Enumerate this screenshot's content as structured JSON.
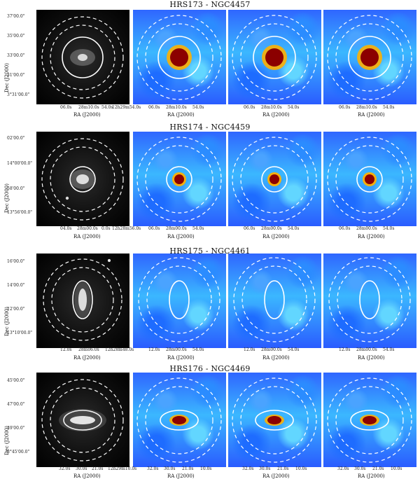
{
  "rows": [
    {
      "title": "HRS173 - NGC4457",
      "optical": {
        "yticks": [
          "37'00.0\"",
          "35'00.0\"",
          "33'00.0\"",
          "31'00.0\"",
          "3°31'00.0\""
        ],
        "xticks": [
          "06.0s",
          "28m10.0s",
          "54.0s",
          "12h29m54.0s"
        ],
        "ylabel": "Dec (J2000)",
        "xlabel": "RA (J2000)"
      },
      "ir1": {
        "xticks": [
          "06.0s",
          "28m10.0s",
          "54.0s"
        ],
        "xlabel": "RA (J2000)"
      },
      "ir2": {
        "xticks": [
          "06.0s",
          "28m10.0s",
          "54.0s"
        ],
        "xlabel": "RA (J2000)"
      },
      "ir3": {
        "xticks": [
          "06.0s",
          "28m10.0s",
          "54.0s"
        ],
        "xlabel": "RA (J2000)"
      }
    },
    {
      "title": "HRS174 - NGC4459",
      "optical": {
        "yticks": [
          "02'00.0\"",
          "14°00'00.0\"",
          "58'00.0\"",
          "13°56'00.0\""
        ],
        "xticks": [
          "04.0s",
          "28m00.0s",
          "0.0s",
          "12h28m56.0s"
        ],
        "ylabel": "Dec (J2000)",
        "xlabel": "RA (J2000)"
      },
      "ir1": {
        "xticks": [
          "06.0s",
          "28m00.0s",
          "54.0s"
        ],
        "xlabel": "RA (J2000)"
      },
      "ir2": {
        "xticks": [
          "06.0s",
          "28m00.0s",
          "54.0s"
        ],
        "xlabel": "RA (J2000)"
      },
      "ir3": {
        "xticks": [
          "06.0s",
          "28m00.0s",
          "54.0s"
        ],
        "xlabel": "RA (J2000)"
      }
    },
    {
      "title": "HRS175 - NGC4461",
      "optical": {
        "yticks": [
          "16'00.0\"",
          "14'00.0\"",
          "12'00.0\"",
          "13°10'00.0\""
        ],
        "xticks": [
          "12.0s",
          "28m06.0s",
          "12h28m48.0s"
        ],
        "ylabel": "Dec (J2000)",
        "xlabel": "RA (J2000)"
      },
      "ir1": {
        "xticks": [
          "12.0s",
          "28m00.0s",
          "54.0s"
        ],
        "xlabel": "RA (J2000)"
      },
      "ir2": {
        "xticks": [
          "12.0s",
          "28m00.0s",
          "54.0s"
        ],
        "xlabel": "RA (J2000)"
      },
      "ir3": {
        "xticks": [
          "12.0s",
          "28m00.0s",
          "54.0s"
        ],
        "xlabel": "RA (J2000)"
      }
    },
    {
      "title": "HRS176 - NGC4469",
      "optical": {
        "yticks": [
          "45'00.0\"",
          "47'00.0\"",
          "49'00.0\"",
          "8°45'00.0\""
        ],
        "xticks": [
          "32.0s",
          "30.0s",
          "21.0s",
          "12h29m10.0s"
        ],
        "ylabel": "Dec (J2000)",
        "xlabel": "RA (J2000)"
      },
      "ir1": {
        "xticks": [
          "32.0s",
          "30.0s",
          "21.0s",
          "10.0s"
        ],
        "xlabel": "RA (J2000)"
      },
      "ir2": {
        "xticks": [
          "32.0s",
          "30.0s",
          "21.0s",
          "10.0s"
        ],
        "xlabel": "RA (J2000)"
      },
      "ir3": {
        "xticks": [
          "32.0s",
          "30.0s",
          "21.0s",
          "10.0s"
        ],
        "xlabel": "RA (J2000)"
      }
    }
  ],
  "colors": {
    "optical_bg": "#000000",
    "ir_low": "#2b5cff",
    "ir_mid": "#55d7ff",
    "ir_high": "#8b0000",
    "contour": "#ffffff"
  }
}
